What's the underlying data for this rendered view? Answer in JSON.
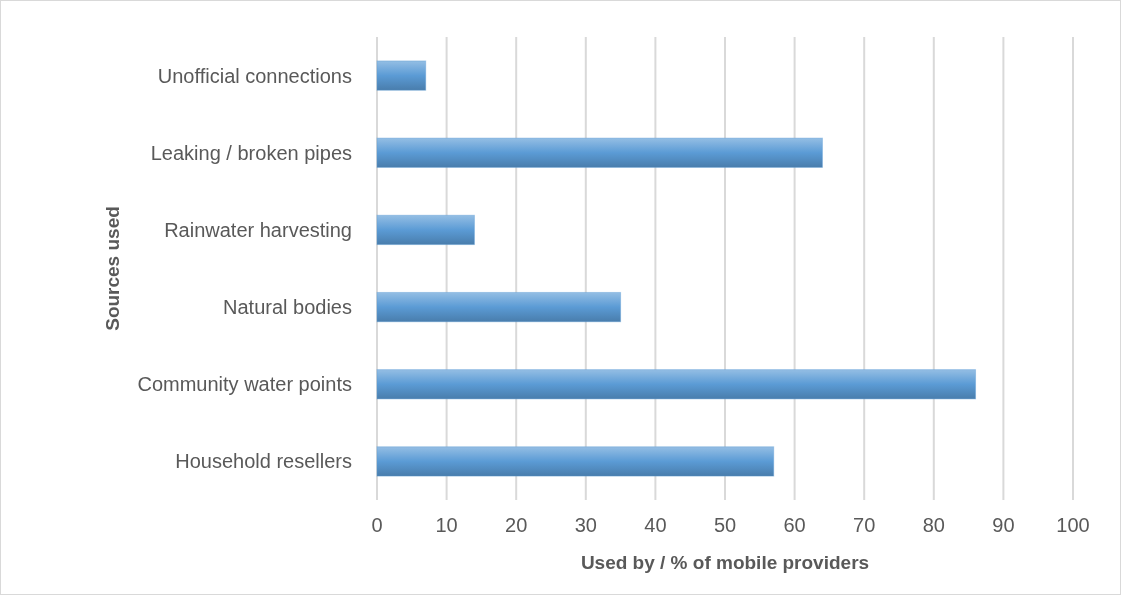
{
  "chart_data": {
    "type": "bar",
    "orientation": "horizontal",
    "xlabel": "Used by / % of mobile providers",
    "ylabel": "Sources used",
    "categories": [
      "Unofficial connections",
      "Leaking / broken pipes",
      "Rainwater harvesting",
      "Natural bodies",
      "Community water points",
      "Household resellers"
    ],
    "values": [
      7,
      64,
      14,
      35,
      86,
      57
    ],
    "color": "#5b9bd5",
    "xlim": [
      0,
      100
    ],
    "xticks": [
      0,
      10,
      20,
      30,
      40,
      50,
      60,
      70,
      80,
      90,
      100
    ],
    "grid": "x"
  }
}
